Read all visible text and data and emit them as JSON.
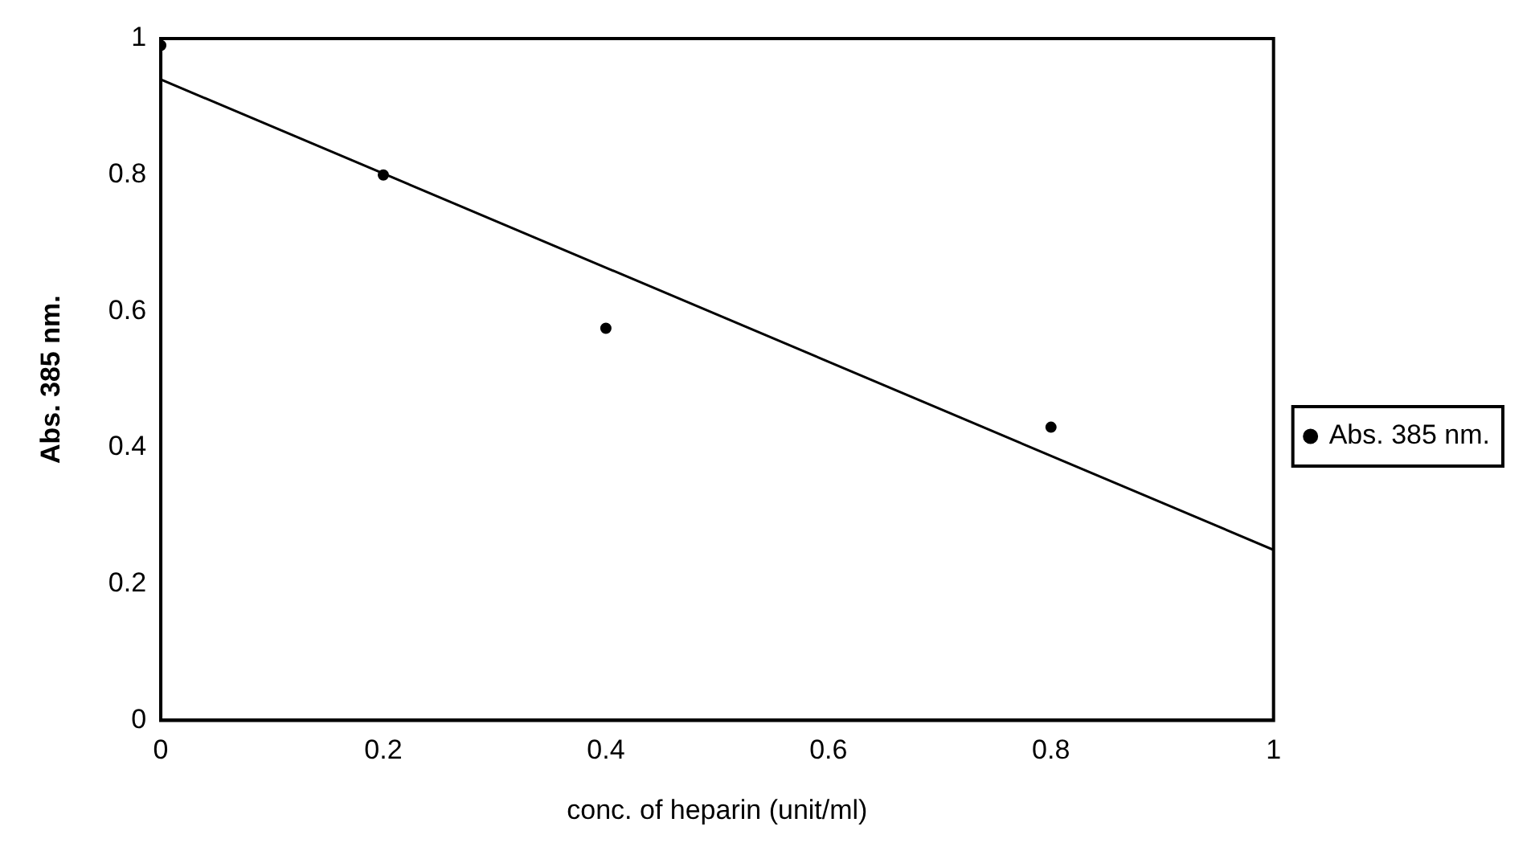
{
  "chart_data": {
    "type": "scatter",
    "xlabel": "conc. of heparin (unit/ml)",
    "ylabel": "Abs. 385 nm.",
    "series": [
      {
        "name": "Abs. 385 nm.",
        "marker": "circle",
        "color": "#000000",
        "x": [
          0,
          0.2,
          0.4,
          0.8
        ],
        "values": [
          0.99,
          0.8,
          0.575,
          0.43
        ]
      },
      {
        "type": "line",
        "color": "#000000",
        "x": [
          0,
          1
        ],
        "values": [
          0.94,
          0.25
        ]
      }
    ],
    "xlim": [
      0,
      1
    ],
    "xticks": [
      0,
      0.2,
      0.4,
      0.6,
      0.8,
      1
    ],
    "ylim": [
      0,
      1
    ],
    "yticks": [
      0,
      0.2,
      0.4,
      0.6,
      0.8,
      1
    ],
    "grid": false,
    "legend": "right"
  }
}
